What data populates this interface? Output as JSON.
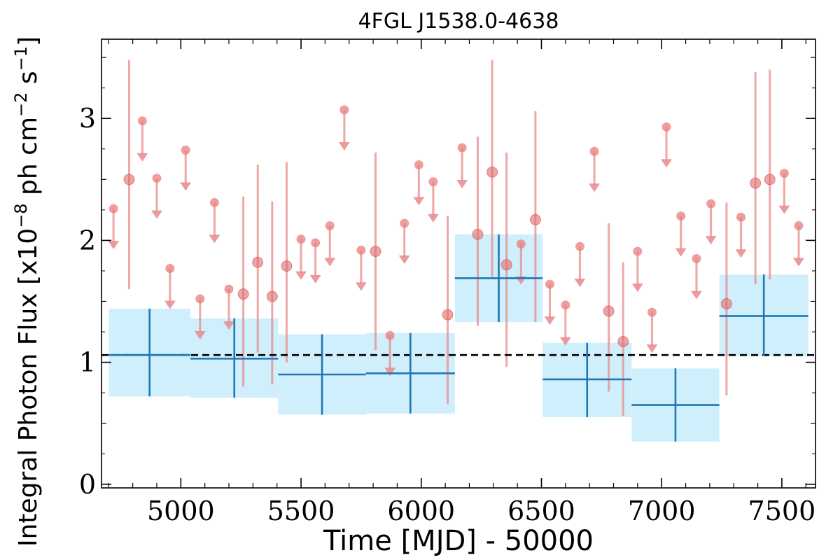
{
  "chart_data": {
    "type": "scatter",
    "title": "4FGL J1538.0-4638",
    "xlabel": "Time [MJD] - 50000",
    "ylabel": "Integral Photon Flux [x10",
    "ylabel_exp": "−8",
    "ylabel_mid": " ph cm",
    "ylabel_exp2": "−2",
    "ylabel_end": " s",
    "ylabel_exp3": "−1",
    "ylabel_close": "]",
    "xlim": [
      4670,
      7640
    ],
    "ylim": [
      -0.03,
      3.65
    ],
    "xticks": [
      5000,
      5500,
      6000,
      6500,
      7000,
      7500
    ],
    "yticks": [
      0,
      1,
      2,
      3
    ],
    "grid": false,
    "reference_line": {
      "y": 1.06,
      "style": "dashed",
      "color": "#000000"
    },
    "colors": {
      "short_bins": "#e88a8a",
      "long_bins_line": "#1f77b4",
      "long_bins_fill": "#cdeefc"
    },
    "series": [
      {
        "kind": "measurement",
        "points": [
          {
            "x": 4785,
            "y": 2.5,
            "lo": 1.6,
            "hi": 3.48
          },
          {
            "x": 5260,
            "y": 1.56,
            "lo": 0.8,
            "hi": 2.36
          },
          {
            "x": 5320,
            "y": 1.82,
            "lo": 1.08,
            "hi": 2.62
          },
          {
            "x": 5380,
            "y": 1.54,
            "lo": 0.82,
            "hi": 2.32
          },
          {
            "x": 5440,
            "y": 1.79,
            "lo": 1.0,
            "hi": 2.64
          },
          {
            "x": 5810,
            "y": 1.91,
            "lo": 1.1,
            "hi": 2.72
          },
          {
            "x": 6110,
            "y": 1.39,
            "lo": 0.66,
            "hi": 2.2
          },
          {
            "x": 6235,
            "y": 2.05,
            "lo": 1.3,
            "hi": 2.85
          },
          {
            "x": 6295,
            "y": 2.56,
            "lo": 1.7,
            "hi": 3.48
          },
          {
            "x": 6355,
            "y": 1.8,
            "lo": 0.96,
            "hi": 2.72
          },
          {
            "x": 6475,
            "y": 2.17,
            "lo": 1.33,
            "hi": 3.06
          },
          {
            "x": 6780,
            "y": 1.42,
            "lo": 0.76,
            "hi": 2.14
          },
          {
            "x": 6840,
            "y": 1.17,
            "lo": 0.56,
            "hi": 1.82
          },
          {
            "x": 7270,
            "y": 1.48,
            "lo": 0.73,
            "hi": 2.31
          },
          {
            "x": 7390,
            "y": 2.47,
            "lo": 1.64,
            "hi": 3.38
          },
          {
            "x": 7450,
            "y": 2.5,
            "lo": 1.68,
            "hi": 3.4
          }
        ]
      },
      {
        "kind": "upper_limit",
        "points": [
          {
            "x": 4720,
            "y": 2.26
          },
          {
            "x": 4840,
            "y": 2.98
          },
          {
            "x": 4900,
            "y": 2.51
          },
          {
            "x": 4955,
            "y": 1.77
          },
          {
            "x": 5020,
            "y": 2.74
          },
          {
            "x": 5080,
            "y": 1.52
          },
          {
            "x": 5140,
            "y": 2.31
          },
          {
            "x": 5200,
            "y": 1.6
          },
          {
            "x": 5500,
            "y": 2.01
          },
          {
            "x": 5560,
            "y": 1.98
          },
          {
            "x": 5620,
            "y": 2.12
          },
          {
            "x": 5680,
            "y": 3.07
          },
          {
            "x": 5750,
            "y": 1.92
          },
          {
            "x": 5870,
            "y": 1.22
          },
          {
            "x": 5930,
            "y": 2.14
          },
          {
            "x": 5990,
            "y": 2.62
          },
          {
            "x": 6050,
            "y": 2.48
          },
          {
            "x": 6170,
            "y": 2.76
          },
          {
            "x": 6415,
            "y": 1.97
          },
          {
            "x": 6535,
            "y": 1.64
          },
          {
            "x": 6600,
            "y": 1.47
          },
          {
            "x": 6660,
            "y": 1.95
          },
          {
            "x": 6720,
            "y": 2.73
          },
          {
            "x": 6900,
            "y": 1.91
          },
          {
            "x": 6960,
            "y": 1.41
          },
          {
            "x": 7020,
            "y": 2.93
          },
          {
            "x": 7080,
            "y": 2.2
          },
          {
            "x": 7145,
            "y": 1.85
          },
          {
            "x": 7205,
            "y": 2.3
          },
          {
            "x": 7330,
            "y": 2.19
          },
          {
            "x": 7510,
            "y": 2.55
          },
          {
            "x": 7570,
            "y": 2.12
          }
        ]
      },
      {
        "kind": "long_bins",
        "bins": [
          {
            "x0": 4700,
            "x1": 5040,
            "y": 1.06,
            "lo": 0.72,
            "hi": 1.44
          },
          {
            "x0": 5040,
            "x1": 5405,
            "y": 1.03,
            "lo": 0.71,
            "hi": 1.36
          },
          {
            "x0": 5405,
            "x1": 5770,
            "y": 0.9,
            "lo": 0.57,
            "hi": 1.23
          },
          {
            "x0": 5770,
            "x1": 6140,
            "y": 0.91,
            "lo": 0.58,
            "hi": 1.24
          },
          {
            "x0": 6140,
            "x1": 6505,
            "y": 1.69,
            "lo": 1.33,
            "hi": 2.05
          },
          {
            "x0": 6505,
            "x1": 6875,
            "y": 0.86,
            "lo": 0.55,
            "hi": 1.16
          },
          {
            "x0": 6875,
            "x1": 7240,
            "y": 0.65,
            "lo": 0.35,
            "hi": 0.95
          },
          {
            "x0": 7240,
            "x1": 7610,
            "y": 1.38,
            "lo": 1.05,
            "hi": 1.72
          }
        ]
      }
    ]
  }
}
